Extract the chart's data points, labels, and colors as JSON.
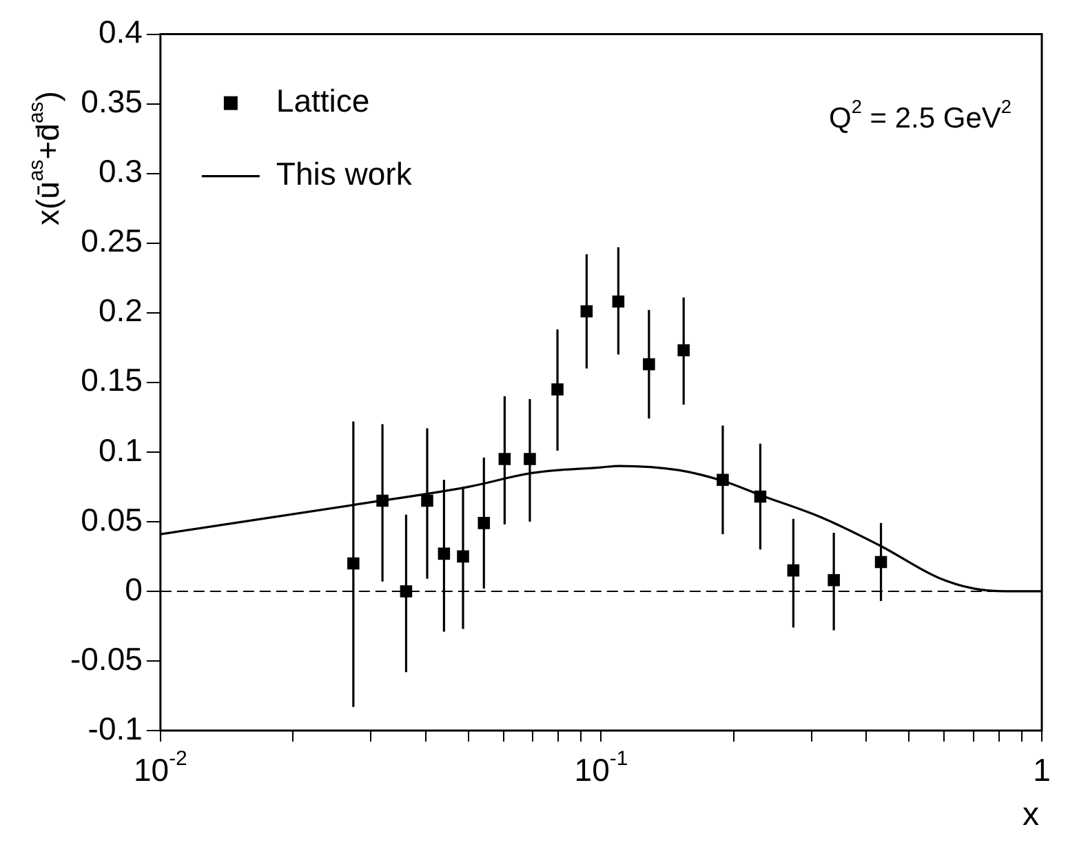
{
  "chart_data": {
    "type": "scatter",
    "xlabel": "x",
    "ylabel": "x(ū$^{as}$+d̄$^{as}$)",
    "annotations": [
      "Q$^{2}$ = 2.5 GeV$^{2}$"
    ],
    "log": "x",
    "legend": "top left",
    "marker": "square",
    "xlim": [
      0.01,
      1
    ],
    "xticks": [
      {
        "value": 0.01,
        "label": "10$^{-2}$"
      },
      {
        "value": 0.02,
        "label": null
      },
      {
        "value": 0.03,
        "label": null
      },
      {
        "value": 0.04,
        "label": null
      },
      {
        "value": 0.05,
        "label": null
      },
      {
        "value": 0.06,
        "label": null
      },
      {
        "value": 0.07,
        "label": null
      },
      {
        "value": 0.08,
        "label": null
      },
      {
        "value": 0.09,
        "label": null
      },
      {
        "value": 0.1,
        "label": "10$^{-1}$"
      },
      {
        "value": 0.2,
        "label": null
      },
      {
        "value": 0.3,
        "label": null
      },
      {
        "value": 0.4,
        "label": null
      },
      {
        "value": 0.5,
        "label": null
      },
      {
        "value": 0.6,
        "label": null
      },
      {
        "value": 0.7,
        "label": null
      },
      {
        "value": 0.8,
        "label": null
      },
      {
        "value": 0.9,
        "label": null
      },
      {
        "value": 1,
        "label": "1"
      }
    ],
    "ylim": [
      -0.1,
      0.4
    ],
    "yticks": [
      -0.1,
      -0.05,
      0,
      0.05,
      0.1,
      0.15,
      0.2,
      0.25,
      0.3,
      0.35,
      0.4
    ],
    "ref_lines": [
      {
        "axis": "y",
        "value": 0,
        "color": "#000000",
        "line_style": "dashed"
      }
    ],
    "series": [
      {
        "name": "Lattice",
        "color": "#000000",
        "x": [
          0.0274,
          0.0319,
          0.0361,
          0.0403,
          0.044,
          0.0486,
          0.0542,
          0.0604,
          0.0689,
          0.0796,
          0.0927,
          0.1094,
          0.1284,
          0.1539,
          0.1888,
          0.2297,
          0.273,
          0.3373,
          0.4315
        ],
        "values": [
          0.02,
          0.065,
          0,
          0.065,
          0.027,
          0.025,
          0.049,
          0.095,
          0.095,
          0.145,
          0.201,
          0.208,
          0.163,
          0.173,
          0.08,
          0.068,
          0.015,
          0.008,
          0.021
        ],
        "errors": [
          [
            -0.083,
            0.122
          ],
          [
            0.007,
            0.12
          ],
          [
            -0.058,
            0.055
          ],
          [
            0.009,
            0.117
          ],
          [
            -0.029,
            0.08
          ],
          [
            -0.027,
            0.075
          ],
          [
            0.002,
            0.096
          ],
          [
            0.048,
            0.14
          ],
          [
            0.05,
            0.138
          ],
          [
            0.101,
            0.188
          ],
          [
            0.16,
            0.242
          ],
          [
            0.17,
            0.247
          ],
          [
            0.124,
            0.202
          ],
          [
            0.134,
            0.211
          ],
          [
            0.041,
            0.119
          ],
          [
            0.03,
            0.106
          ],
          [
            -0.026,
            0.052
          ],
          [
            -0.028,
            0.042
          ],
          [
            -0.007,
            0.049
          ]
        ]
      },
      {
        "name": "This work",
        "type": "line",
        "color": "#000000",
        "marker": "none",
        "line_style": "solid",
        "x": [
          0.01,
          0.0274,
          0.05,
          0.07,
          0.1,
          0.11,
          0.15,
          0.19,
          0.23,
          0.316,
          0.434,
          0.58,
          0.7,
          0.834,
          1
        ],
        "values": [
          0.041,
          0.062,
          0.075,
          0.085,
          0.089,
          0.09,
          0.087,
          0.079,
          0.069,
          0.053,
          0.032,
          0.01,
          0.002,
          0,
          0
        ]
      }
    ]
  }
}
